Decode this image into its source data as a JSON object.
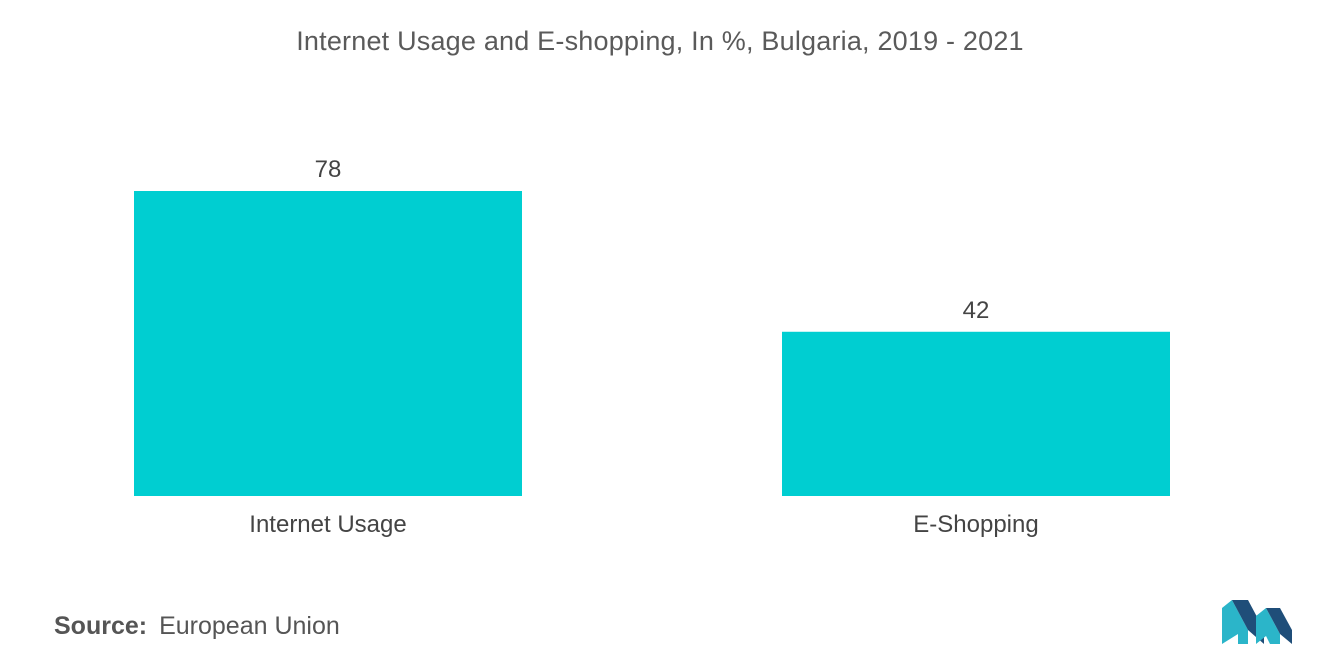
{
  "title": "Internet Usage and E-shopping, In %, Bulgaria, 2019 - 2021",
  "source": {
    "label": "Source:",
    "value": "European Union"
  },
  "colors": {
    "bar": "#00CED1",
    "logo_dark": "#1F4E79",
    "logo_light": "#2BB5C9"
  },
  "chart_data": {
    "type": "bar",
    "categories": [
      "Internet Usage",
      "E-Shopping"
    ],
    "values": [
      78,
      42
    ],
    "title": "Internet Usage and E-shopping, In %, Bulgaria, 2019 - 2021",
    "xlabel": "",
    "ylabel": "",
    "ylim": [
      0,
      78
    ],
    "grid": false,
    "data_labels": true
  }
}
